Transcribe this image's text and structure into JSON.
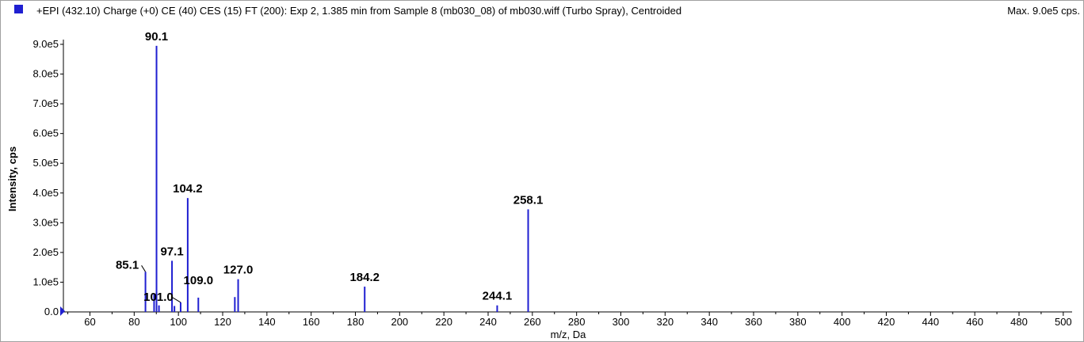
{
  "header": {
    "title": "+EPI (432.10) Charge (+0) CE (40) CES (15) FT (200): Exp 2, 1.385 min from Sample 8 (mb030_08) of mb030.wiff (Turbo Spray), Centroided",
    "max_label": "Max. 9.0e5 cps.",
    "legend_color": "#1f1fd1"
  },
  "chart_data": {
    "type": "bar",
    "title": "+EPI (432.10) Charge (+0) CE (40) CES (15) FT (200): Exp 2, 1.385 min from Sample 8 (mb030_08) of mb030.wiff (Turbo Spray), Centroided",
    "xlabel": "m/z, Da",
    "ylabel": "Intensity, cps",
    "xlim": [
      48,
      504
    ],
    "ylim": [
      0,
      950000
    ],
    "x_ticks": [
      60,
      80,
      100,
      120,
      140,
      160,
      180,
      200,
      220,
      240,
      260,
      280,
      300,
      320,
      340,
      360,
      380,
      400,
      420,
      440,
      460,
      480,
      500
    ],
    "y_ticks": [
      {
        "value": 0,
        "label": "0.0"
      },
      {
        "value": 100000,
        "label": "1.0e5"
      },
      {
        "value": 200000,
        "label": "2.0e5"
      },
      {
        "value": 300000,
        "label": "3.0e5"
      },
      {
        "value": 400000,
        "label": "4.0e5"
      },
      {
        "value": 500000,
        "label": "5.0e5"
      },
      {
        "value": 600000,
        "label": "6.0e5"
      },
      {
        "value": 700000,
        "label": "7.0e5"
      },
      {
        "value": 800000,
        "label": "8.0e5"
      },
      {
        "value": 900000,
        "label": "9.0e5"
      }
    ],
    "color": "#1f1fd1",
    "peaks": [
      {
        "mz": 85.1,
        "intensity": 135000,
        "label": "85.1"
      },
      {
        "mz": 89.0,
        "intensity": 60000,
        "label": ""
      },
      {
        "mz": 90.1,
        "intensity": 895000,
        "label": "90.1"
      },
      {
        "mz": 91.2,
        "intensity": 22000,
        "label": ""
      },
      {
        "mz": 97.1,
        "intensity": 172000,
        "label": "97.1"
      },
      {
        "mz": 98.2,
        "intensity": 20000,
        "label": ""
      },
      {
        "mz": 101.0,
        "intensity": 32000,
        "label": "101.0"
      },
      {
        "mz": 104.2,
        "intensity": 383000,
        "label": "104.2"
      },
      {
        "mz": 109.0,
        "intensity": 48000,
        "label": "109.0"
      },
      {
        "mz": 125.5,
        "intensity": 50000,
        "label": ""
      },
      {
        "mz": 127.0,
        "intensity": 110000,
        "label": "127.0"
      },
      {
        "mz": 184.2,
        "intensity": 85000,
        "label": "184.2"
      },
      {
        "mz": 244.1,
        "intensity": 22000,
        "label": "244.1"
      },
      {
        "mz": 258.1,
        "intensity": 345000,
        "label": "258.1"
      }
    ]
  }
}
